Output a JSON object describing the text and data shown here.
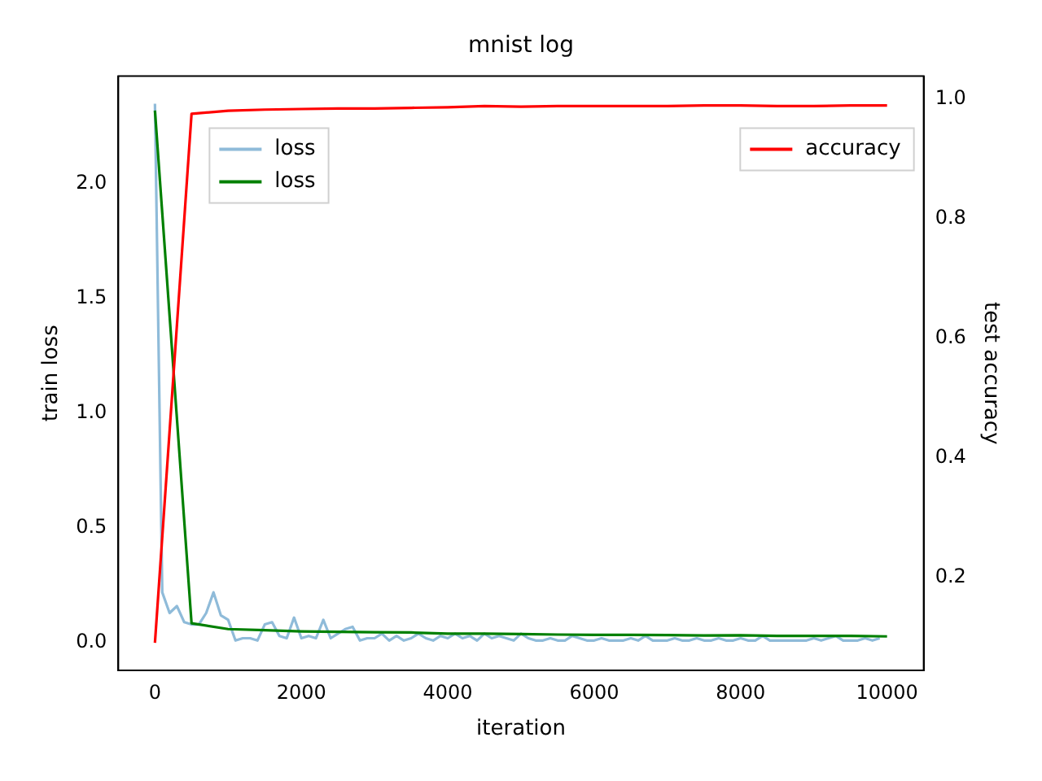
{
  "chart_data": {
    "type": "line",
    "title": "mnist log",
    "xlabel": "iteration",
    "ylabel": "train loss",
    "y2label": "test accuracy",
    "xlim": [
      -500,
      10500
    ],
    "xticks": [
      0,
      2000,
      4000,
      6000,
      8000,
      10000
    ],
    "ylim": [
      -0.12,
      2.47
    ],
    "yticks": [
      {
        "value": 0,
        "label": "0.0"
      },
      0.5,
      {
        "value": 1,
        "label": "1.0"
      },
      1.5,
      {
        "value": 2,
        "label": "2.0"
      }
    ],
    "y2lim": [
      0.044,
      1.038
    ],
    "y2ticks": [
      0.2,
      0.4,
      0.6,
      0.8,
      {
        "value": 1,
        "label": "1.0"
      }
    ],
    "grid": false,
    "legend": "top",
    "series": [
      {
        "name": "loss",
        "color": "#8fbbd9",
        "x": [
          0,
          100,
          200,
          300,
          400,
          500,
          600,
          700,
          800,
          900,
          1000,
          1100,
          1200,
          1300,
          1400,
          1500,
          1600,
          1700,
          1800,
          1900,
          2000,
          2100,
          2200,
          2300,
          2400,
          2500,
          2600,
          2700,
          2800,
          2900,
          3000,
          3100,
          3200,
          3300,
          3400,
          3500,
          3600,
          3700,
          3800,
          3900,
          4000,
          4100,
          4200,
          4300,
          4400,
          4500,
          4600,
          4700,
          4800,
          4900,
          5000,
          5100,
          5200,
          5300,
          5400,
          5500,
          5600,
          5700,
          5800,
          5900,
          6000,
          6100,
          6200,
          6300,
          6400,
          6500,
          6600,
          6700,
          6800,
          6900,
          7000,
          7100,
          7200,
          7300,
          7400,
          7500,
          7600,
          7700,
          7800,
          7900,
          8000,
          8100,
          8200,
          8300,
          8400,
          8500,
          8600,
          8700,
          8800,
          8900,
          9000,
          9100,
          9200,
          9300,
          9400,
          9500,
          9600,
          9700,
          9800,
          9900
        ],
        "values": [
          2.35,
          0.22,
          0.13,
          0.16,
          0.09,
          0.08,
          0.08,
          0.13,
          0.22,
          0.12,
          0.1,
          0.01,
          0.02,
          0.02,
          0.01,
          0.08,
          0.09,
          0.03,
          0.02,
          0.11,
          0.02,
          0.03,
          0.02,
          0.1,
          0.02,
          0.04,
          0.06,
          0.07,
          0.01,
          0.02,
          0.02,
          0.04,
          0.01,
          0.03,
          0.01,
          0.02,
          0.04,
          0.02,
          0.01,
          0.03,
          0.02,
          0.04,
          0.02,
          0.03,
          0.01,
          0.04,
          0.02,
          0.03,
          0.02,
          0.01,
          0.04,
          0.02,
          0.01,
          0.01,
          0.02,
          0.01,
          0.01,
          0.03,
          0.02,
          0.01,
          0.01,
          0.02,
          0.01,
          0.01,
          0.01,
          0.02,
          0.01,
          0.03,
          0.01,
          0.01,
          0.01,
          0.02,
          0.01,
          0.01,
          0.02,
          0.01,
          0.01,
          0.02,
          0.01,
          0.01,
          0.02,
          0.01,
          0.01,
          0.03,
          0.01,
          0.01,
          0.01,
          0.01,
          0.01,
          0.01,
          0.02,
          0.01,
          0.02,
          0.03,
          0.01,
          0.01,
          0.01,
          0.02,
          0.01,
          0.02
        ]
      },
      {
        "name": "loss",
        "color": "#008000",
        "x": [
          0,
          500,
          1000,
          1500,
          2000,
          2500,
          3000,
          3500,
          4000,
          4500,
          5000,
          5500,
          6000,
          6500,
          7000,
          7500,
          8000,
          8500,
          9000,
          9500,
          10000
        ],
        "values": [
          2.32,
          0.085,
          0.06,
          0.055,
          0.05,
          0.048,
          0.046,
          0.045,
          0.04,
          0.04,
          0.038,
          0.036,
          0.035,
          0.035,
          0.034,
          0.032,
          0.033,
          0.03,
          0.03,
          0.03,
          0.028
        ]
      },
      {
        "name": "accuracy",
        "color": "#ff0000",
        "axis": "y2",
        "x": [
          0,
          500,
          1000,
          1500,
          2000,
          2500,
          3000,
          3500,
          4000,
          4500,
          5000,
          5500,
          6000,
          6500,
          7000,
          7500,
          8000,
          8500,
          9000,
          9500,
          10000
        ],
        "values": [
          0.09,
          0.975,
          0.98,
          0.982,
          0.983,
          0.984,
          0.984,
          0.985,
          0.986,
          0.988,
          0.987,
          0.988,
          0.988,
          0.988,
          0.988,
          0.989,
          0.989,
          0.988,
          0.988,
          0.989,
          0.989
        ]
      }
    ]
  }
}
